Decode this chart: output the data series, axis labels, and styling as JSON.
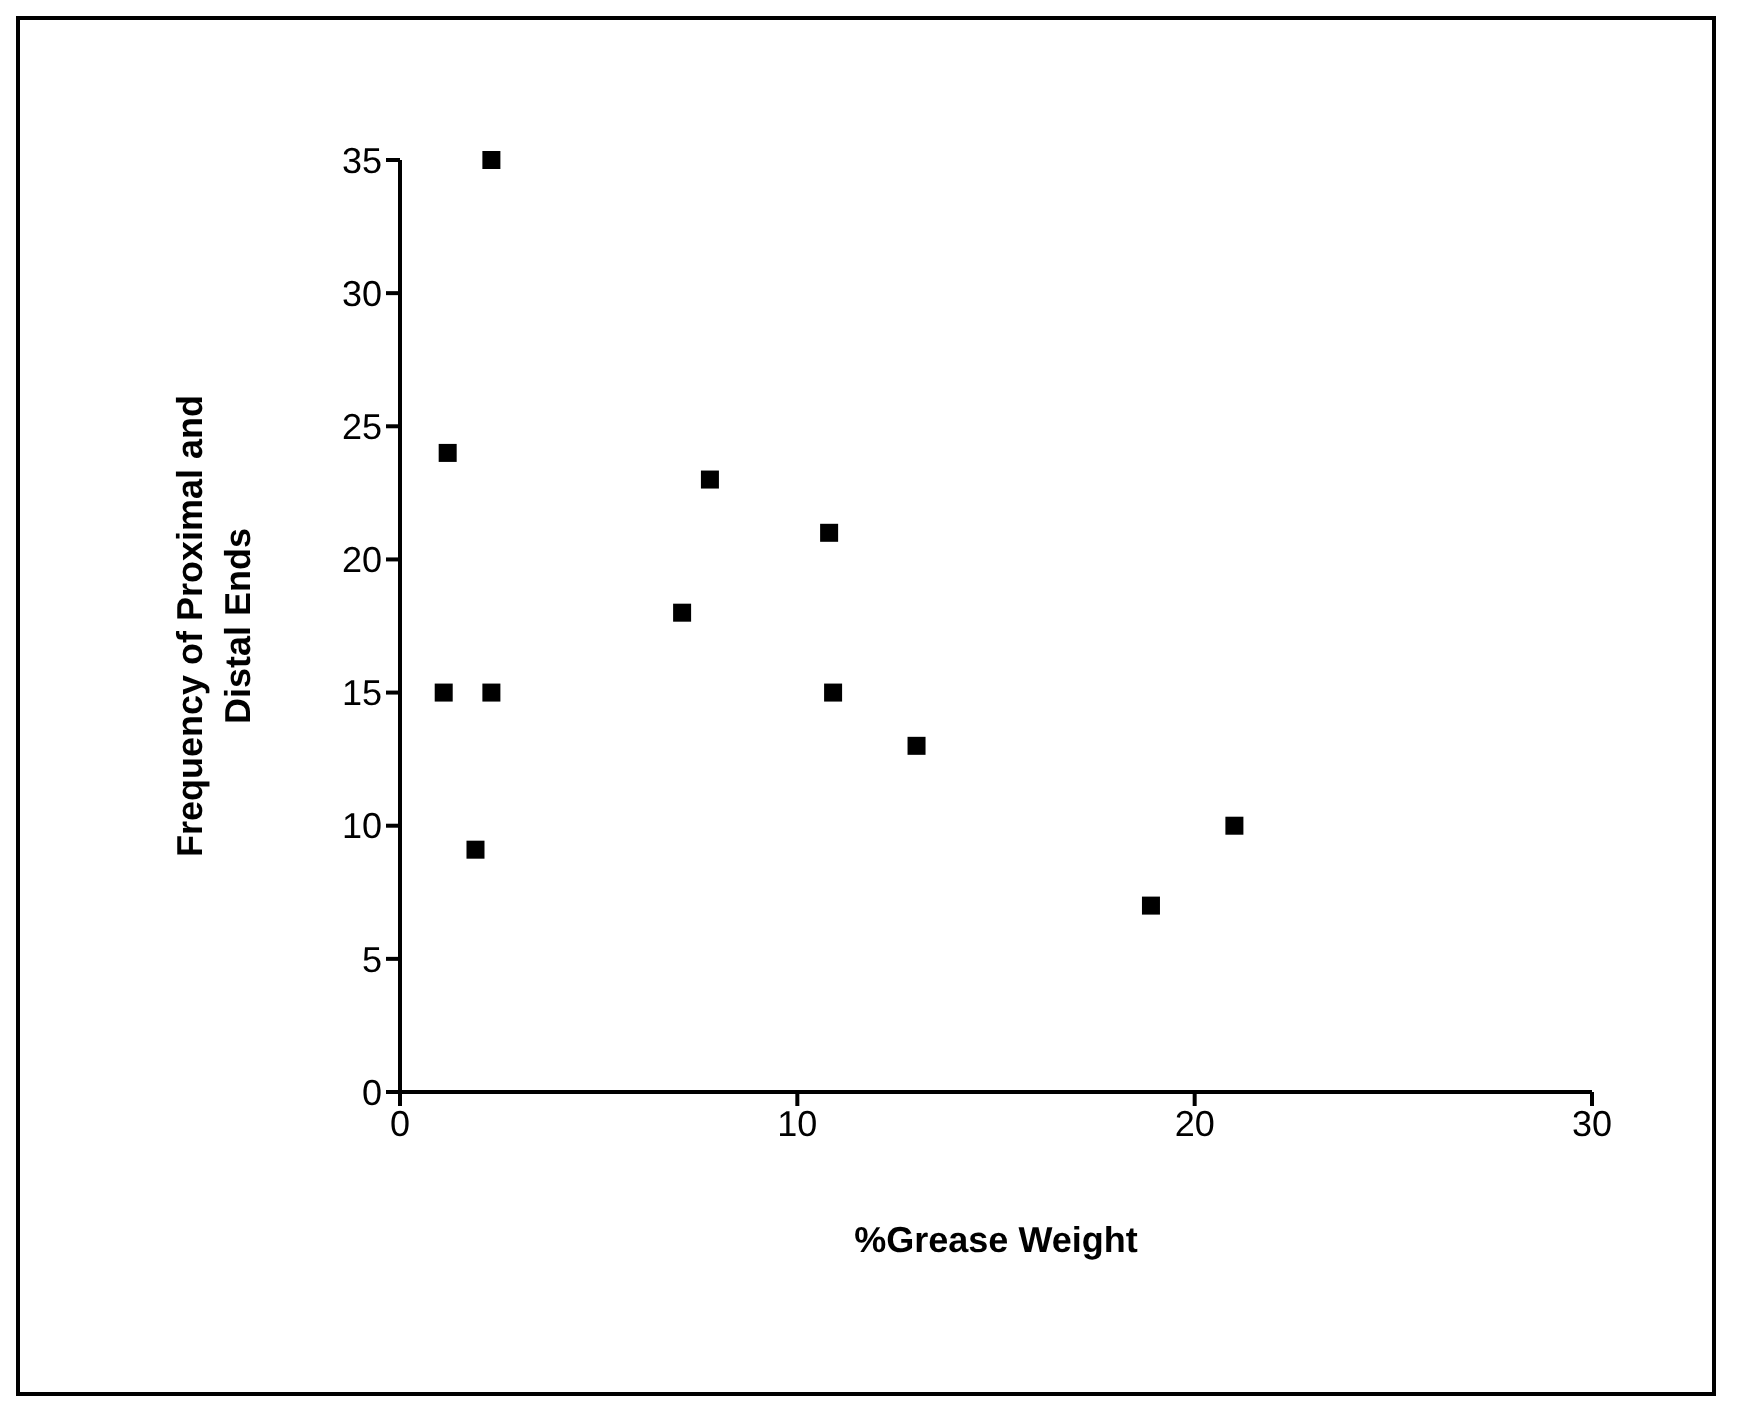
{
  "chart_data": {
    "type": "scatter",
    "xlabel": "%Grease Weight",
    "ylabel": "Frequency of Proximal and Distal Ends",
    "x": [
      2.3,
      1.2,
      7.8,
      10.8,
      7.1,
      1.1,
      2.3,
      10.9,
      13.0,
      1.9,
      21.0,
      18.9
    ],
    "series": [
      {
        "color": "#000000",
        "values": [
          35,
          24,
          23,
          21,
          18,
          15,
          15,
          15,
          13,
          9.1,
          10,
          7
        ]
      }
    ],
    "xlim": [
      0,
      30
    ],
    "xticks": [
      0,
      10,
      20,
      30
    ],
    "ylim": [
      0,
      35
    ],
    "yticks": [
      0,
      5,
      10,
      15,
      20,
      25,
      30,
      35
    ],
    "grid": false,
    "legend": false,
    "marker": "square"
  }
}
